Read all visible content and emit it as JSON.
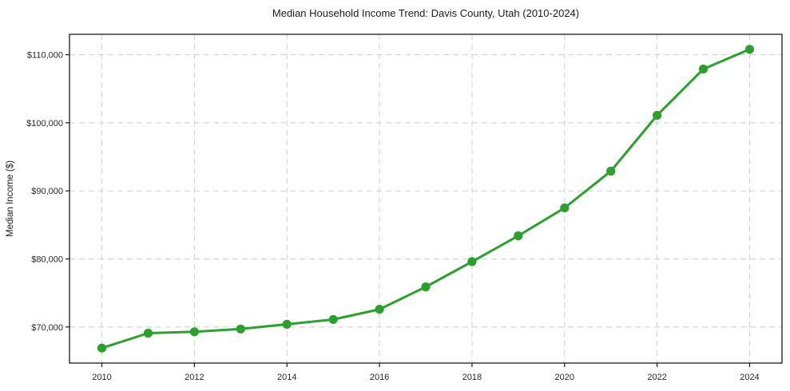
{
  "chart_data": {
    "type": "line",
    "title": "Median Household Income Trend: Davis County, Utah (2010-2024)",
    "xlabel": "",
    "ylabel": "Median Income ($)",
    "x": [
      2010,
      2011,
      2012,
      2013,
      2014,
      2015,
      2016,
      2017,
      2018,
      2019,
      2020,
      2021,
      2022,
      2023,
      2024
    ],
    "series": [
      {
        "name": "Median Household Income",
        "values": [
          66900,
          69100,
          69300,
          69700,
          70400,
          71100,
          72600,
          75900,
          79600,
          83400,
          87500,
          92900,
          101100,
          107900,
          110800
        ]
      }
    ],
    "xlim": [
      2009.3,
      2024.7
    ],
    "ylim": [
      64700,
      113000
    ],
    "xticks": [
      2010,
      2012,
      2014,
      2016,
      2018,
      2020,
      2022,
      2024
    ],
    "xtick_labels": [
      "2010",
      "2012",
      "2014",
      "2016",
      "2018",
      "2020",
      "2022",
      "2024"
    ],
    "yticks": [
      70000,
      80000,
      90000,
      100000,
      110000
    ],
    "ytick_labels": [
      "$70,000",
      "$80,000",
      "$90,000",
      "$100,000",
      "$110,000"
    ],
    "grid": true,
    "grid_style": "dashed",
    "legend": "none",
    "marker": "circle",
    "colors": {
      "line": "#2ca02c",
      "marker": "#2ca02c",
      "grid": "#cfcfcf",
      "spine": "#1a1a1a",
      "tick": "#1a1a1a",
      "background": "#ffffff"
    }
  }
}
